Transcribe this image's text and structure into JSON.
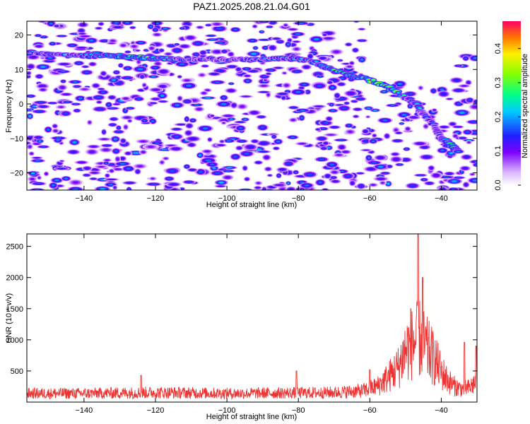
{
  "title": "PAZ1.2025.208.21.04.G01",
  "chart_data": [
    {
      "type": "heatmap",
      "xlabel": "Height of straight line (km)",
      "ylabel": "Frequency (Hz)",
      "xlim": [
        -156,
        -30
      ],
      "ylim": [
        -25,
        24
      ],
      "x_ticks": [
        -140,
        -120,
        -100,
        -80,
        -60,
        -40
      ],
      "y_ticks": [
        20,
        10,
        0,
        -10,
        -20
      ],
      "colorbar": {
        "label": "Normalized spectral amplitude",
        "range": [
          0,
          0.48
        ],
        "ticks": [
          0.0,
          0.1,
          0.2,
          0.3,
          0.4
        ]
      },
      "ridge": {
        "x": [
          -156,
          -150,
          -145,
          -140,
          -135,
          -130,
          -125,
          -120,
          -115,
          -110,
          -105,
          -100,
          -95,
          -90,
          -85,
          -80,
          -75,
          -70,
          -65,
          -60,
          -55,
          -50,
          -47,
          -45,
          -42,
          -40,
          -37,
          -35
        ],
        "y": [
          15,
          14.5,
          14.2,
          14,
          14,
          13.8,
          13.5,
          13.2,
          13.2,
          13,
          13,
          12.8,
          12.8,
          13,
          13.2,
          13,
          12,
          9.5,
          8,
          7,
          5,
          2,
          0,
          -3,
          -6,
          -10,
          -12,
          -14
        ],
        "amp": [
          0.18,
          0.2,
          0.22,
          0.18,
          0.26,
          0.34,
          0.38,
          0.3,
          0.2,
          0.18,
          0.16,
          0.16,
          0.17,
          0.18,
          0.2,
          0.18,
          0.22,
          0.3,
          0.28,
          0.36,
          0.42,
          0.2,
          0.22,
          0.16,
          0.14,
          0.14,
          0.4,
          0.15
        ]
      }
    },
    {
      "type": "line",
      "xlabel": "Height of straight line (km)",
      "ylabel": "SNR (10 * v/v)",
      "xlim": [
        -156,
        -30
      ],
      "ylim": [
        0,
        2700
      ],
      "x_ticks": [
        -140,
        -120,
        -100,
        -80,
        -60,
        -40
      ],
      "y_ticks": [
        500,
        1000,
        1500,
        2000,
        2500
      ],
      "series": [
        {
          "color": "#ee3333",
          "envelope_x": [
            -156,
            -140,
            -120,
            -100,
            -80,
            -70,
            -62,
            -58,
            -55,
            -52,
            -50,
            -48,
            -46,
            -44,
            -42,
            -40,
            -38,
            -36,
            -34,
            -32,
            -30
          ],
          "envelope_y": [
            200,
            200,
            220,
            200,
            210,
            220,
            260,
            360,
            560,
            800,
            1200,
            1350,
            1450,
            1200,
            1000,
            700,
            480,
            350,
            300,
            330,
            500
          ],
          "peaks": [
            [
              -46.5,
              2700
            ],
            [
              -45.2,
              2000
            ],
            [
              -48.5,
              1500
            ],
            [
              -80.5,
              500
            ],
            [
              -33.5,
              960
            ],
            [
              -30.3,
              900
            ],
            [
              -60,
              520
            ],
            [
              -124,
              430
            ]
          ]
        }
      ]
    }
  ]
}
